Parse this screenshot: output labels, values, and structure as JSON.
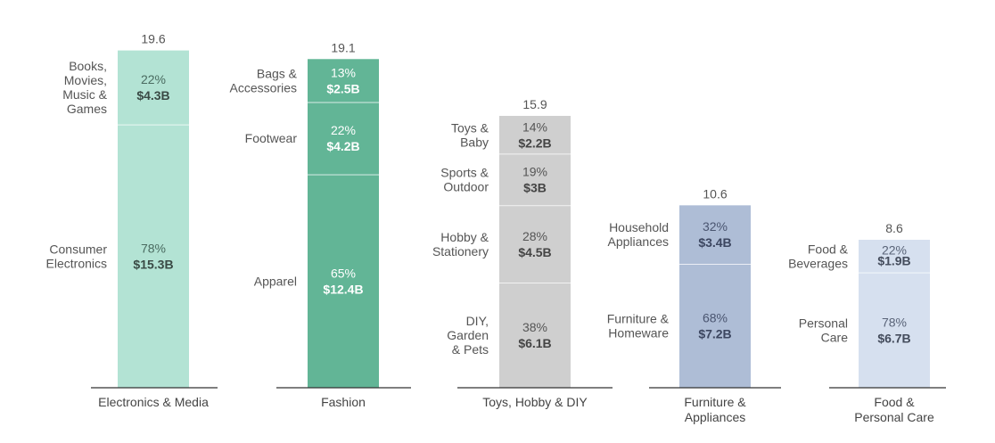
{
  "chart_data": {
    "type": "bar",
    "subtype": "stacked",
    "value_unit": "$B",
    "ylim": [
      0,
      20
    ],
    "groups": [
      {
        "category": "Electronics & Media",
        "category_lines": [
          "Electronics & Media"
        ],
        "total": "19.6",
        "colors": {
          "fill": "#b3e3d4",
          "text_pct": "#4a6b60",
          "text_val": "#3a4a45"
        },
        "segments": [
          {
            "name": "Consumer Electronics",
            "name_lines": [
              "Consumer",
              "Electronics"
            ],
            "pct": "78%",
            "value": 15.3,
            "value_label": "$15.3B"
          },
          {
            "name": "Books, Movies, Music & Games",
            "name_lines": [
              "Books,",
              "Movies,",
              "Music &",
              "Games"
            ],
            "pct": "22%",
            "value": 4.3,
            "value_label": "$4.3B"
          }
        ]
      },
      {
        "category": "Fashion",
        "category_lines": [
          "Fashion"
        ],
        "total": "19.1",
        "colors": {
          "fill": "#62b596",
          "text_pct": "#ffffff",
          "text_val": "#ffffff"
        },
        "segments": [
          {
            "name": "Apparel",
            "name_lines": [
              "Apparel"
            ],
            "pct": "65%",
            "value": 12.4,
            "value_label": "$12.4B"
          },
          {
            "name": "Footwear",
            "name_lines": [
              "Footwear"
            ],
            "pct": "22%",
            "value": 4.2,
            "value_label": "$4.2B"
          },
          {
            "name": "Bags & Accessories",
            "name_lines": [
              "Bags &",
              "Accessories"
            ],
            "pct": "13%",
            "value": 2.5,
            "value_label": "$2.5B"
          }
        ]
      },
      {
        "category": "Toys, Hobby & DIY",
        "category_lines": [
          "Toys, Hobby & DIY"
        ],
        "total": "15.9",
        "colors": {
          "fill": "#cfcfcf",
          "text_pct": "#555555",
          "text_val": "#444444"
        },
        "segments": [
          {
            "name": "DIY, Garden & Pets",
            "name_lines": [
              "DIY,",
              "Garden",
              "& Pets"
            ],
            "pct": "38%",
            "value": 6.1,
            "value_label": "$6.1B"
          },
          {
            "name": "Hobby & Stationery",
            "name_lines": [
              "Hobby &",
              "Stationery"
            ],
            "pct": "28%",
            "value": 4.5,
            "value_label": "$4.5B"
          },
          {
            "name": "Sports & Outdoor",
            "name_lines": [
              "Sports &",
              "Outdoor"
            ],
            "pct": "19%",
            "value": 3.0,
            "value_label": "$3B"
          },
          {
            "name": "Toys & Baby",
            "name_lines": [
              "Toys &",
              "Baby"
            ],
            "pct": "14%",
            "value": 2.2,
            "value_label": "$2.2B"
          }
        ]
      },
      {
        "category": "Furniture & Appliances",
        "category_lines": [
          "Furniture &",
          "Appliances"
        ],
        "total": "10.6",
        "colors": {
          "fill": "#aebdd6",
          "text_pct": "#4a5570",
          "text_val": "#3c4660"
        },
        "segments": [
          {
            "name": "Furniture & Homeware",
            "name_lines": [
              "Furniture &",
              "Homeware"
            ],
            "pct": "68%",
            "value": 7.2,
            "value_label": "$7.2B"
          },
          {
            "name": "Household Appliances",
            "name_lines": [
              "Household",
              "Appliances"
            ],
            "pct": "32%",
            "value": 3.4,
            "value_label": "$3.4B"
          }
        ]
      },
      {
        "category": "Food & Personal Care",
        "category_lines": [
          "Food &",
          "Personal Care"
        ],
        "total": "8.6",
        "colors": {
          "fill": "#d6e0ef",
          "text_pct": "#5a6478",
          "text_val": "#444c5c"
        },
        "segments": [
          {
            "name": "Personal Care",
            "name_lines": [
              "Personal",
              "Care"
            ],
            "pct": "78%",
            "value": 6.7,
            "value_label": "$6.7B"
          },
          {
            "name": "Food & Beverages",
            "name_lines": [
              "Food &",
              "Beverages"
            ],
            "pct": "22%",
            "value": 1.9,
            "value_label": "$1.9B"
          }
        ]
      }
    ]
  }
}
